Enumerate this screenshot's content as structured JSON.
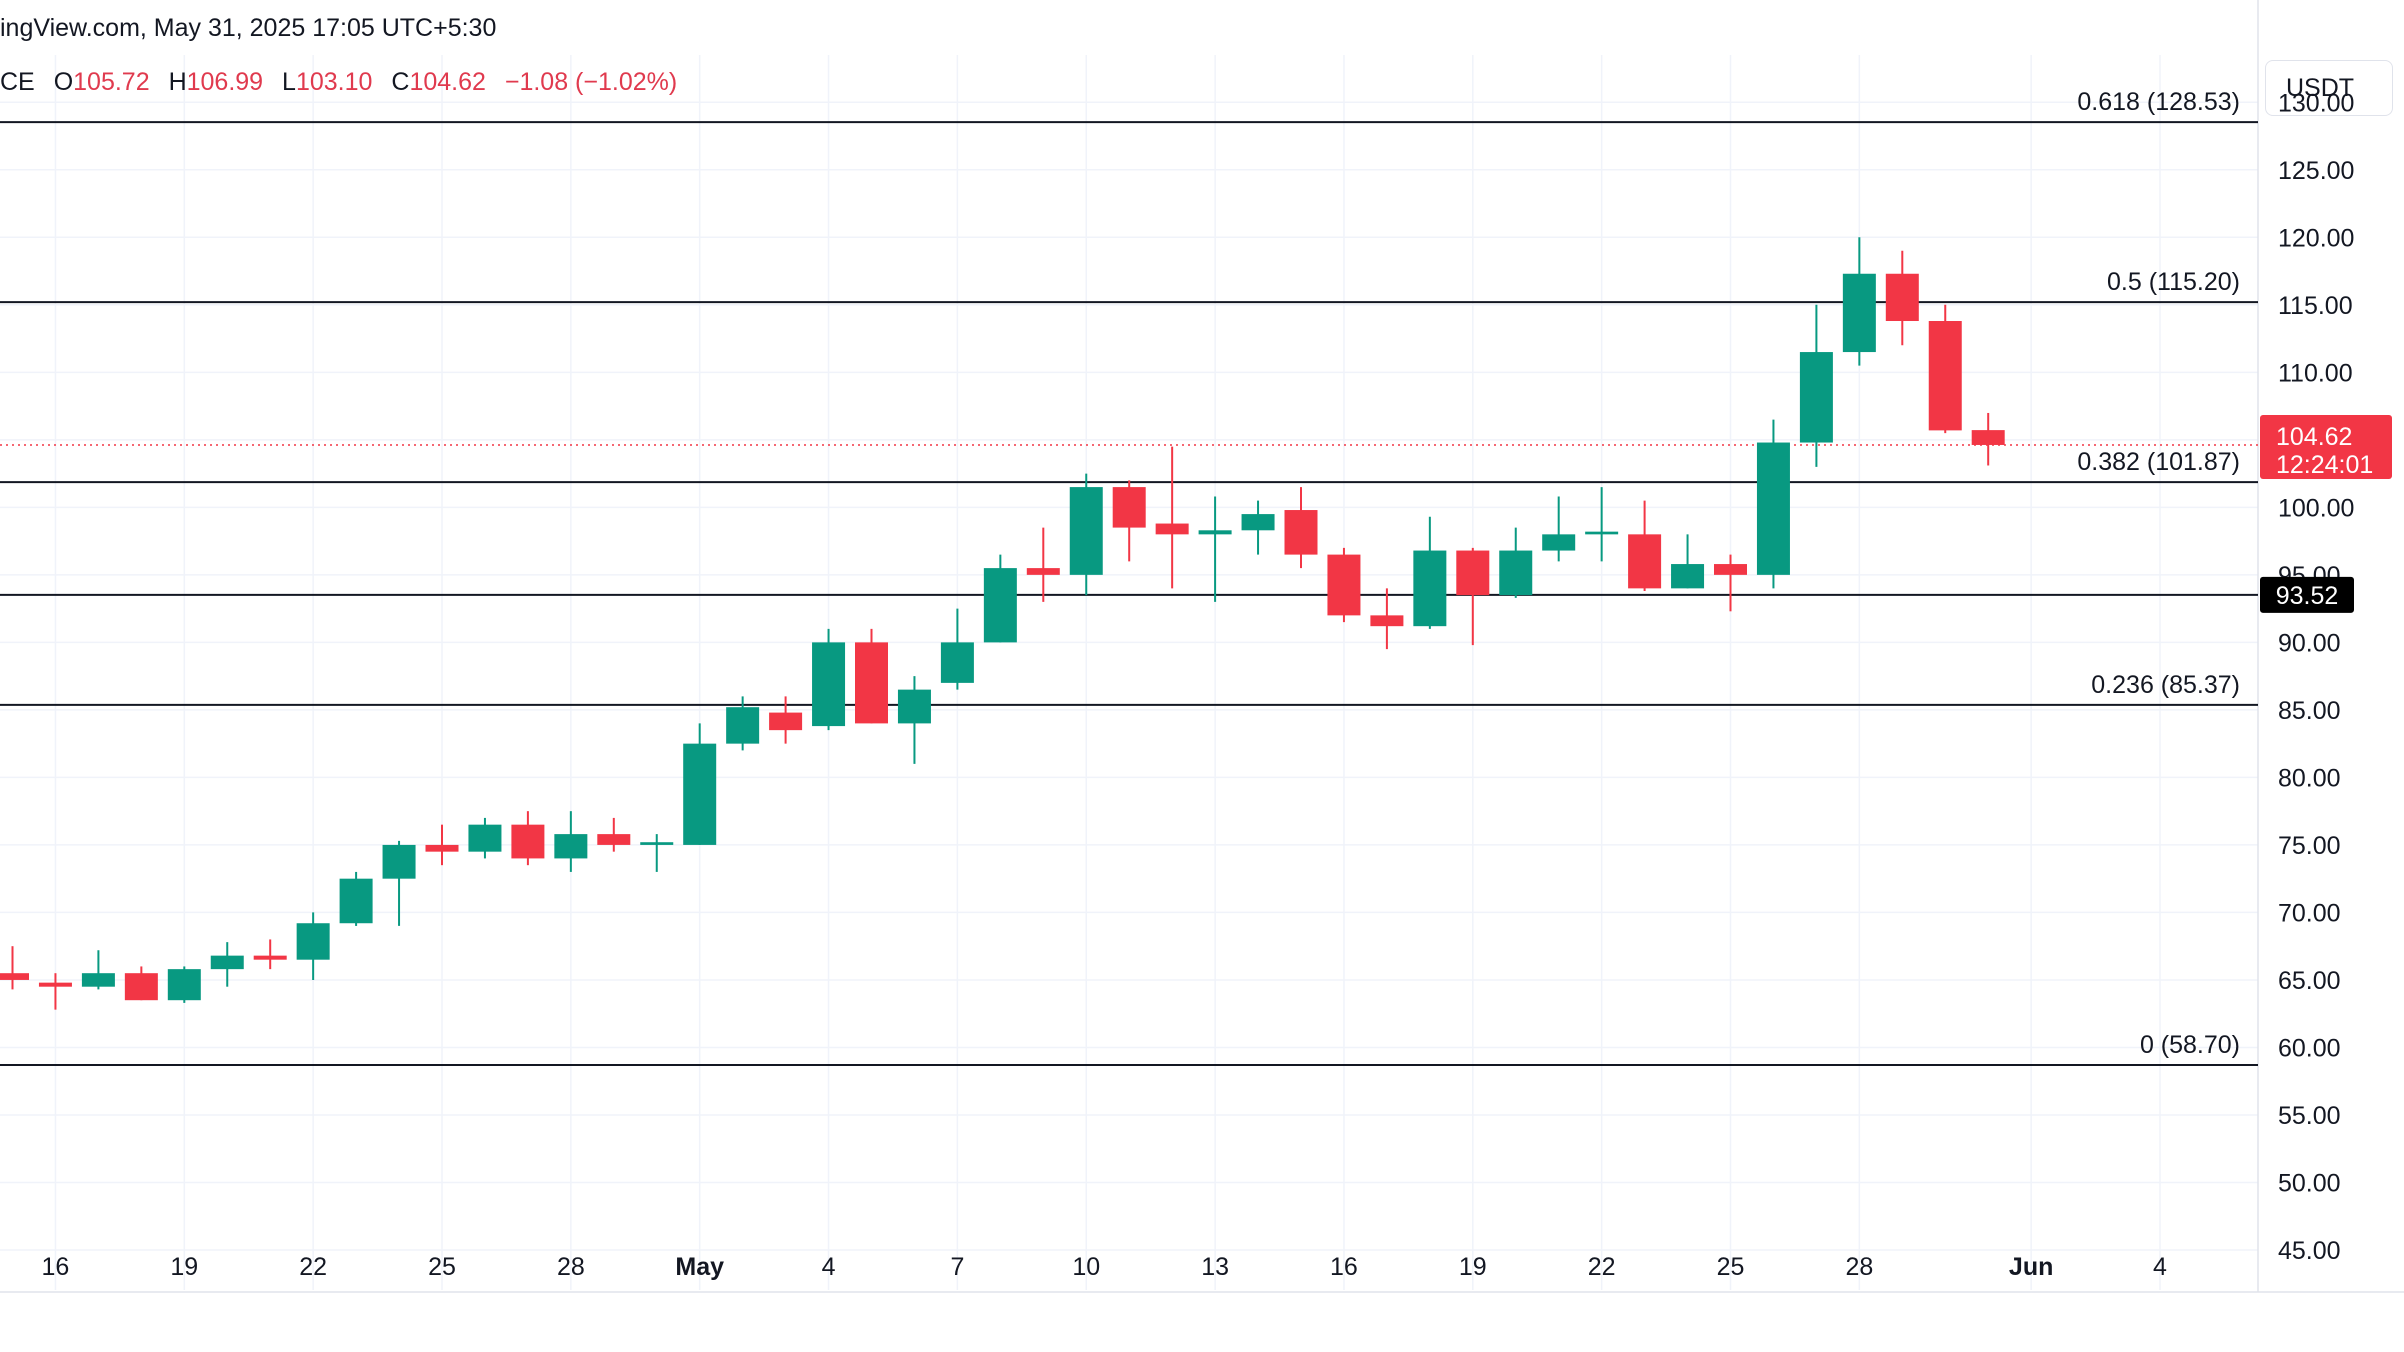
{
  "header": {
    "credit": "ingView.com, May 31, 2025 17:05 UTC+5:30",
    "symbol_fragment": "CE",
    "ohlc": {
      "o_label": "O",
      "o_value": "105.72",
      "h_label": "H",
      "h_value": "106.99",
      "l_label": "L",
      "l_value": "103.10",
      "c_label": "C",
      "c_value": "104.62",
      "change": "−1.08 (−1.02%)"
    },
    "currency": "USDT"
  },
  "colors": {
    "up": "#089981",
    "down": "#f23645",
    "grid": "#f0f3fa",
    "level_line": "#131722",
    "axis_text": "#131722"
  },
  "chart_data": {
    "type": "candlestick",
    "y_axis": {
      "ylim": [
        45,
        133.5
      ],
      "ticks": [
        "45.00",
        "50.00",
        "55.00",
        "60.00",
        "65.00",
        "70.00",
        "75.00",
        "80.00",
        "85.00",
        "90.00",
        "95.00",
        "100.00",
        "105.00",
        "110.00",
        "115.00",
        "120.00",
        "125.00",
        "130.00"
      ]
    },
    "x_axis": {
      "labels": [
        {
          "i": 1,
          "text": "16"
        },
        {
          "i": 4,
          "text": "19"
        },
        {
          "i": 7,
          "text": "22"
        },
        {
          "i": 10,
          "text": "25"
        },
        {
          "i": 13,
          "text": "28"
        },
        {
          "i": 16,
          "text": "May",
          "bold": true
        },
        {
          "i": 19,
          "text": "4"
        },
        {
          "i": 22,
          "text": "7"
        },
        {
          "i": 25,
          "text": "10"
        },
        {
          "i": 28,
          "text": "13"
        },
        {
          "i": 31,
          "text": "16"
        },
        {
          "i": 34,
          "text": "19"
        },
        {
          "i": 37,
          "text": "22"
        },
        {
          "i": 40,
          "text": "25"
        },
        {
          "i": 43,
          "text": "28"
        },
        {
          "i": 47,
          "text": "Jun",
          "bold": true
        },
        {
          "i": 50,
          "text": "4"
        }
      ]
    },
    "candles": [
      {
        "i": 0,
        "o": 65.5,
        "h": 67.5,
        "l": 64.3,
        "c": 65.0
      },
      {
        "i": 1,
        "o": 64.8,
        "h": 65.5,
        "l": 62.8,
        "c": 64.5
      },
      {
        "i": 2,
        "o": 64.5,
        "h": 67.2,
        "l": 64.3,
        "c": 65.5
      },
      {
        "i": 3,
        "o": 65.5,
        "h": 66.0,
        "l": 63.5,
        "c": 63.5
      },
      {
        "i": 4,
        "o": 63.5,
        "h": 66.0,
        "l": 63.3,
        "c": 65.8
      },
      {
        "i": 5,
        "o": 65.8,
        "h": 67.8,
        "l": 64.5,
        "c": 66.8
      },
      {
        "i": 6,
        "o": 66.8,
        "h": 68.0,
        "l": 65.8,
        "c": 66.5
      },
      {
        "i": 7,
        "o": 66.5,
        "h": 70.0,
        "l": 65.0,
        "c": 69.2
      },
      {
        "i": 8,
        "o": 69.2,
        "h": 73.0,
        "l": 69.0,
        "c": 72.5
      },
      {
        "i": 9,
        "o": 72.5,
        "h": 75.3,
        "l": 69.0,
        "c": 75.0
      },
      {
        "i": 10,
        "o": 75.0,
        "h": 76.5,
        "l": 73.5,
        "c": 74.5
      },
      {
        "i": 11,
        "o": 74.5,
        "h": 77.0,
        "l": 74.0,
        "c": 76.5
      },
      {
        "i": 12,
        "o": 76.5,
        "h": 77.5,
        "l": 73.5,
        "c": 74.0
      },
      {
        "i": 13,
        "o": 74.0,
        "h": 77.5,
        "l": 73.0,
        "c": 75.8
      },
      {
        "i": 14,
        "o": 75.8,
        "h": 77.0,
        "l": 74.5,
        "c": 75.0
      },
      {
        "i": 15,
        "o": 75.0,
        "h": 75.8,
        "l": 73.0,
        "c": 75.2
      },
      {
        "i": 16,
        "o": 75.0,
        "h": 84.0,
        "l": 75.0,
        "c": 82.5
      },
      {
        "i": 17,
        "o": 82.5,
        "h": 86.0,
        "l": 82.0,
        "c": 85.2
      },
      {
        "i": 18,
        "o": 84.8,
        "h": 86.0,
        "l": 82.5,
        "c": 83.5
      },
      {
        "i": 19,
        "o": 83.8,
        "h": 91.0,
        "l": 83.5,
        "c": 90.0
      },
      {
        "i": 20,
        "o": 90.0,
        "h": 91.0,
        "l": 84.0,
        "c": 84.0
      },
      {
        "i": 21,
        "o": 84.0,
        "h": 87.5,
        "l": 81.0,
        "c": 86.5
      },
      {
        "i": 22,
        "o": 87.0,
        "h": 92.5,
        "l": 86.5,
        "c": 90.0
      },
      {
        "i": 23,
        "o": 90.0,
        "h": 96.5,
        "l": 90.0,
        "c": 95.5
      },
      {
        "i": 24,
        "o": 95.5,
        "h": 98.5,
        "l": 93.0,
        "c": 95.0
      },
      {
        "i": 25,
        "o": 95.0,
        "h": 102.5,
        "l": 93.5,
        "c": 101.5
      },
      {
        "i": 26,
        "o": 101.5,
        "h": 102.0,
        "l": 96.0,
        "c": 98.5
      },
      {
        "i": 27,
        "o": 98.8,
        "h": 104.5,
        "l": 94.0,
        "c": 98.0
      },
      {
        "i": 28,
        "o": 98.0,
        "h": 100.8,
        "l": 93.0,
        "c": 98.3
      },
      {
        "i": 29,
        "o": 98.3,
        "h": 100.5,
        "l": 96.5,
        "c": 99.5
      },
      {
        "i": 30,
        "o": 99.8,
        "h": 101.5,
        "l": 95.5,
        "c": 96.5
      },
      {
        "i": 31,
        "o": 96.5,
        "h": 97.0,
        "l": 91.5,
        "c": 92.0
      },
      {
        "i": 32,
        "o": 92.0,
        "h": 94.0,
        "l": 89.5,
        "c": 91.2
      },
      {
        "i": 33,
        "o": 91.2,
        "h": 99.3,
        "l": 91.0,
        "c": 96.8
      },
      {
        "i": 34,
        "o": 96.8,
        "h": 97.0,
        "l": 89.8,
        "c": 93.5
      },
      {
        "i": 35,
        "o": 93.5,
        "h": 98.5,
        "l": 93.3,
        "c": 96.8
      },
      {
        "i": 36,
        "o": 96.8,
        "h": 100.8,
        "l": 96.0,
        "c": 98.0
      },
      {
        "i": 37,
        "o": 98.0,
        "h": 101.5,
        "l": 96.0,
        "c": 98.2
      },
      {
        "i": 38,
        "o": 98.0,
        "h": 100.5,
        "l": 93.8,
        "c": 94.0
      },
      {
        "i": 39,
        "o": 94.0,
        "h": 98.0,
        "l": 94.0,
        "c": 95.8
      },
      {
        "i": 40,
        "o": 95.8,
        "h": 96.5,
        "l": 92.3,
        "c": 95.0
      },
      {
        "i": 41,
        "o": 95.0,
        "h": 106.5,
        "l": 94.0,
        "c": 104.8
      },
      {
        "i": 42,
        "o": 104.8,
        "h": 115.0,
        "l": 103.0,
        "c": 111.5
      },
      {
        "i": 43,
        "o": 111.5,
        "h": 120.0,
        "l": 110.5,
        "c": 117.3
      },
      {
        "i": 44,
        "o": 117.3,
        "h": 119.0,
        "l": 112.0,
        "c": 113.8
      },
      {
        "i": 45,
        "o": 113.8,
        "h": 115.0,
        "l": 105.5,
        "c": 105.7
      },
      {
        "i": 46,
        "o": 105.72,
        "h": 106.99,
        "l": 103.1,
        "c": 104.62
      }
    ],
    "levels": [
      {
        "value": 128.53,
        "label": "0.618 (128.53)"
      },
      {
        "value": 115.2,
        "label": "0.5 (115.20)"
      },
      {
        "value": 101.87,
        "label": "0.382 (101.87)"
      },
      {
        "value": 93.52,
        "label": ""
      },
      {
        "value": 85.37,
        "label": "0.236 (85.37)"
      },
      {
        "value": 58.7,
        "label": "0 (58.70)"
      }
    ],
    "current_price": {
      "value": 104.62,
      "label": "104.62",
      "countdown": "12:24:01"
    },
    "marker_tag": {
      "value": 93.52,
      "label": "93.52"
    }
  }
}
